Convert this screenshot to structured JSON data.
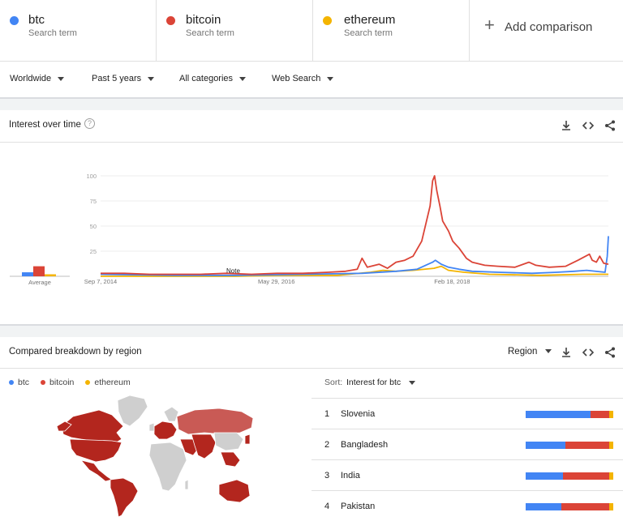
{
  "colors": {
    "btc": "#4285f4",
    "bitcoin": "#db4437",
    "ethereum": "#f4b400",
    "map_gray": "#cfcfcf",
    "divider": "#e0e0e0"
  },
  "terms": [
    {
      "name": "btc",
      "sub": "Search term",
      "color": "#4285f4"
    },
    {
      "name": "bitcoin",
      "sub": "Search term",
      "color": "#db4437"
    },
    {
      "name": "ethereum",
      "sub": "Search term",
      "color": "#f4b400"
    }
  ],
  "add_comparison": {
    "icon": "plus-icon",
    "label": "Add comparison"
  },
  "filters": {
    "region": "Worldwide",
    "time": "Past 5 years",
    "category": "All categories",
    "search_type": "Web Search"
  },
  "interest": {
    "title": "Interest over time",
    "help_icon": "help-icon",
    "actions": [
      "download-icon",
      "embed-icon",
      "share-icon"
    ],
    "average_label": "Average",
    "note_label": "Note"
  },
  "chart_data": {
    "type": "line",
    "x_ticks": [
      "Sep 7, 2014",
      "May 29, 2016",
      "Feb 18, 2018"
    ],
    "y_ticks": [
      25,
      50,
      75,
      100
    ],
    "ylim": [
      0,
      100
    ],
    "grid": true,
    "x_start": "2014-09-07",
    "x_end": "2019-09-01",
    "series": [
      {
        "name": "btc",
        "color": "#4285f4",
        "average": 4,
        "points": [
          [
            "2014-09-07",
            2
          ],
          [
            "2015-06-01",
            1
          ],
          [
            "2016-01-01",
            1
          ],
          [
            "2016-09-01",
            2
          ],
          [
            "2017-04-01",
            3
          ],
          [
            "2017-08-01",
            5
          ],
          [
            "2017-10-15",
            7
          ],
          [
            "2017-11-15",
            11
          ],
          [
            "2017-12-10",
            14
          ],
          [
            "2017-12-20",
            16
          ],
          [
            "2018-01-10",
            12
          ],
          [
            "2018-02-05",
            9
          ],
          [
            "2018-03-15",
            7
          ],
          [
            "2018-05-01",
            5
          ],
          [
            "2018-08-01",
            4
          ],
          [
            "2018-12-01",
            3
          ],
          [
            "2019-03-01",
            4
          ],
          [
            "2019-05-01",
            5
          ],
          [
            "2019-06-15",
            6
          ],
          [
            "2019-08-20",
            4
          ],
          [
            "2019-08-28",
            20
          ],
          [
            "2019-09-01",
            40
          ]
        ]
      },
      {
        "name": "bitcoin",
        "color": "#db4437",
        "average": 10,
        "points": [
          [
            "2014-09-07",
            3
          ],
          [
            "2014-12-01",
            3
          ],
          [
            "2015-03-01",
            2
          ],
          [
            "2015-06-01",
            2
          ],
          [
            "2015-09-01",
            2
          ],
          [
            "2015-12-01",
            3
          ],
          [
            "2016-03-01",
            2
          ],
          [
            "2016-06-01",
            3
          ],
          [
            "2016-09-01",
            3
          ],
          [
            "2016-12-01",
            4
          ],
          [
            "2017-02-01",
            5
          ],
          [
            "2017-03-15",
            7
          ],
          [
            "2017-04-01",
            18
          ],
          [
            "2017-04-20",
            9
          ],
          [
            "2017-06-01",
            12
          ],
          [
            "2017-07-01",
            8
          ],
          [
            "2017-08-01",
            14
          ],
          [
            "2017-09-01",
            16
          ],
          [
            "2017-10-01",
            20
          ],
          [
            "2017-11-01",
            35
          ],
          [
            "2017-12-01",
            70
          ],
          [
            "2017-12-10",
            95
          ],
          [
            "2017-12-17",
            100
          ],
          [
            "2017-12-25",
            85
          ],
          [
            "2018-01-05",
            70
          ],
          [
            "2018-01-15",
            55
          ],
          [
            "2018-02-05",
            45
          ],
          [
            "2018-02-20",
            35
          ],
          [
            "2018-03-15",
            28
          ],
          [
            "2018-04-10",
            18
          ],
          [
            "2018-05-01",
            14
          ],
          [
            "2018-06-15",
            11
          ],
          [
            "2018-08-01",
            10
          ],
          [
            "2018-10-01",
            9
          ],
          [
            "2018-11-20",
            14
          ],
          [
            "2018-12-15",
            11
          ],
          [
            "2019-02-01",
            9
          ],
          [
            "2019-04-01",
            10
          ],
          [
            "2019-05-15",
            16
          ],
          [
            "2019-06-25",
            22
          ],
          [
            "2019-07-05",
            16
          ],
          [
            "2019-07-20",
            14
          ],
          [
            "2019-08-01",
            20
          ],
          [
            "2019-08-15",
            13
          ],
          [
            "2019-09-01",
            12
          ]
        ]
      },
      {
        "name": "ethereum",
        "color": "#f4b400",
        "average": 2,
        "points": [
          [
            "2014-09-07",
            0
          ],
          [
            "2016-01-01",
            0
          ],
          [
            "2016-06-01",
            1
          ],
          [
            "2017-01-01",
            1
          ],
          [
            "2017-05-01",
            4
          ],
          [
            "2017-06-15",
            6
          ],
          [
            "2017-08-01",
            5
          ],
          [
            "2017-10-01",
            6
          ],
          [
            "2017-12-15",
            8
          ],
          [
            "2018-01-10",
            10
          ],
          [
            "2018-02-05",
            6
          ],
          [
            "2018-04-01",
            4
          ],
          [
            "2018-07-01",
            2
          ],
          [
            "2019-01-01",
            1
          ],
          [
            "2019-06-01",
            2
          ],
          [
            "2019-09-01",
            2
          ]
        ]
      }
    ]
  },
  "region_section": {
    "title": "Compared breakdown by region",
    "region_select": "Region",
    "actions": [
      "download-icon",
      "embed-icon",
      "share-icon"
    ],
    "legend": [
      "btc",
      "bitcoin",
      "ethereum"
    ],
    "sort_label": "Sort:",
    "sort_value": "Interest for btc",
    "rows": [
      {
        "rank": "1",
        "name": "Slovenia",
        "btc": 74,
        "bitcoin": 21,
        "ethereum": 5
      },
      {
        "rank": "2",
        "name": "Bangladesh",
        "btc": 45,
        "bitcoin": 50,
        "ethereum": 5
      },
      {
        "rank": "3",
        "name": "India",
        "btc": 43,
        "bitcoin": 52,
        "ethereum": 5
      },
      {
        "rank": "4",
        "name": "Pakistan",
        "btc": 41,
        "bitcoin": 54,
        "ethereum": 5
      }
    ]
  }
}
